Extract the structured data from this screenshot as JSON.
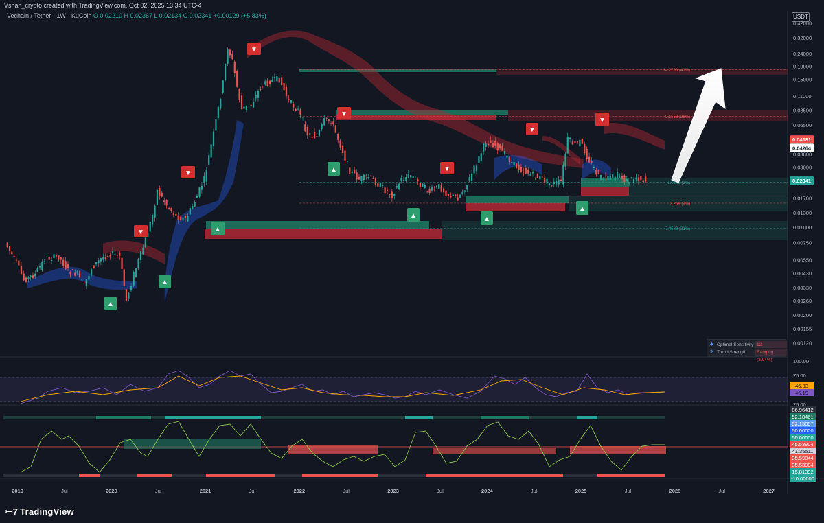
{
  "header": {
    "credit": "Vshan_crypto created with TradingView.com, Oct 02, 2025 13:34 UTC-4",
    "symbol": "Vechain / Tether · 1W · KuCoin",
    "ohlc": "O 0.02210  H 0.02367  L 0.02134  C 0.02341  +0.00129 (+5.83%)"
  },
  "currency_button": "USDT",
  "indicator_panel": {
    "row1_label": "Optimal Sensitivity",
    "row1_value": "12",
    "row2_label": "Trend Strength",
    "row2_value": "Ranging (3.04%)"
  },
  "branding": "TradingView",
  "colors": {
    "bg": "#131722",
    "up": "#26a69a",
    "down": "#ef5350",
    "arrow": "#ffffff",
    "blue_cloud": "#2962ff",
    "red_cloud": "#b22833"
  },
  "chart_data": {
    "type": "line",
    "title": "Vechain / Tether · 1W · KuCoin",
    "scale": "log",
    "ylim": [
      0.00095,
      0.45
    ],
    "y_ticks": [
      0.42,
      0.32,
      0.24,
      0.19,
      0.15,
      0.11,
      0.085,
      0.065,
      0.05,
      0.038,
      0.03,
      0.023,
      0.017,
      0.013,
      0.01,
      0.0075,
      0.0055,
      0.0043,
      0.0033,
      0.0026,
      0.002,
      0.00155,
      0.0012
    ],
    "y_tick_labels": [
      "0.42000",
      "0.32000",
      "0.24000",
      "0.19000",
      "0.15000",
      "0.11000",
      "0.08500",
      "0.06500",
      "0.05000",
      "0.03800",
      "0.03000",
      "0.02300",
      "0.01700",
      "0.01300",
      "0.01000",
      "0.00750",
      "0.00550",
      "0.00430",
      "0.00330",
      "0.00260",
      "0.00200",
      "0.00155",
      "0.00120"
    ],
    "x_axis": {
      "start": 2018.85,
      "end": 2027.2,
      "ticks": [
        2019,
        2019.5,
        2020,
        2020.5,
        2021,
        2021.5,
        2022,
        2022.5,
        2023,
        2023.5,
        2024,
        2024.5,
        2025,
        2025.5,
        2026,
        2026.5,
        2027
      ],
      "labels": [
        "2019",
        "Jul",
        "2020",
        "Jul",
        "2021",
        "Jul",
        "2022",
        "Jul",
        "2023",
        "Jul",
        "2024",
        "Jul",
        "2025",
        "Jul",
        "2026",
        "Jul",
        "2027"
      ]
    },
    "series": [
      {
        "x": [
          2018.88,
          2019.0,
          2019.08,
          2019.2,
          2019.3,
          2019.45,
          2019.55,
          2019.65,
          2019.72,
          2019.8,
          2019.9,
          2020.0,
          2020.1,
          2020.17,
          2020.25,
          2020.35,
          2020.45,
          2020.5,
          2020.6,
          2020.7,
          2020.8,
          2020.9,
          2021.0,
          2021.1,
          2021.2,
          2021.25,
          2021.3,
          2021.35,
          2021.4,
          2021.5,
          2021.6,
          2021.7,
          2021.8,
          2021.9,
          2022.0,
          2022.1,
          2022.2,
          2022.28,
          2022.35,
          2022.45,
          2022.55,
          2022.65,
          2022.75,
          2022.85,
          2022.95,
          2023.0,
          2023.1,
          2023.2,
          2023.3,
          2023.4,
          2023.5,
          2023.6,
          2023.7,
          2023.8,
          2023.9,
          2024.0,
          2024.1,
          2024.2,
          2024.3,
          2024.4,
          2024.5,
          2024.6,
          2024.7,
          2024.8,
          2024.87,
          2024.95,
          2025.0,
          2025.1,
          2025.2,
          2025.3,
          2025.4,
          2025.5,
          2025.6,
          2025.7
        ],
        "values": [
          0.0075,
          0.0052,
          0.0038,
          0.0042,
          0.0056,
          0.0058,
          0.0045,
          0.0042,
          0.0034,
          0.0047,
          0.0056,
          0.0062,
          0.0058,
          0.0026,
          0.0042,
          0.0068,
          0.0125,
          0.0195,
          0.015,
          0.0122,
          0.0115,
          0.016,
          0.024,
          0.055,
          0.14,
          0.27,
          0.21,
          0.13,
          0.086,
          0.095,
          0.13,
          0.145,
          0.15,
          0.1,
          0.085,
          0.055,
          0.052,
          0.07,
          0.07,
          0.045,
          0.028,
          0.024,
          0.025,
          0.022,
          0.019,
          0.018,
          0.024,
          0.026,
          0.022,
          0.019,
          0.021,
          0.018,
          0.017,
          0.022,
          0.032,
          0.048,
          0.045,
          0.038,
          0.031,
          0.028,
          0.026,
          0.024,
          0.022,
          0.023,
          0.05,
          0.045,
          0.048,
          0.034,
          0.025,
          0.024,
          0.026,
          0.023,
          0.025,
          0.0234
        ]
      }
    ],
    "annotations": [
      {
        "label": "14.2798 (41%)",
        "y": 0.179
      },
      {
        "label": "9.1558 (26%)",
        "y": 0.076
      },
      {
        "label": "1.0448 (3%)",
        "y": 0.0227
      },
      {
        "label": "3.268 (9%)",
        "y": 0.0155
      },
      {
        "label": "7.4588 (21%)",
        "y": 0.0098
      }
    ],
    "price_tags": [
      {
        "value": "0.04981",
        "y": 0.0497,
        "color": "#ef5350"
      },
      {
        "value": "0.04264",
        "y": 0.0427,
        "color": "#ffffff"
      },
      {
        "value": "0.02341",
        "y": 0.0234,
        "color": "#26a69a"
      }
    ],
    "rsi": {
      "ylim": [
        25,
        100
      ],
      "tick_labels": [
        "100.00",
        "75.00",
        "25.00"
      ],
      "tag_labels": [
        "46.83",
        "46.19"
      ]
    },
    "oscillator": {
      "tag_labels": [
        "86.96412",
        "52.18461",
        "52.15057",
        "50.00000",
        "50.00000",
        "45.53904",
        "41.35511",
        "35.59044",
        "35.53904",
        "15.81392",
        "-10.00000"
      ]
    }
  }
}
